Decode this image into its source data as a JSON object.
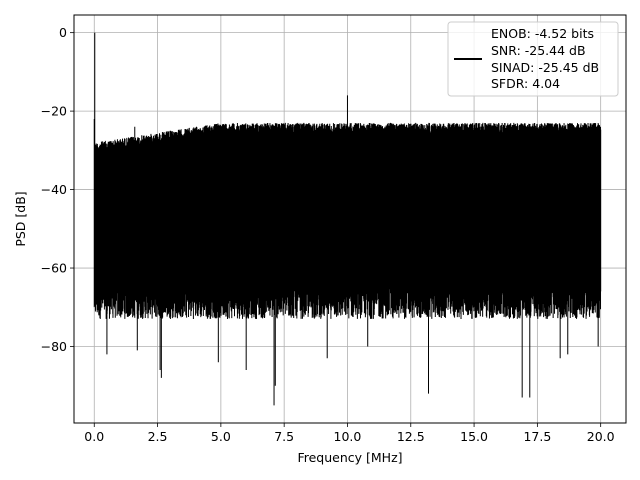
{
  "chart_data": {
    "type": "line",
    "xlabel": "Frequency [MHz]",
    "ylabel": "PSD [dB]",
    "xlim": [
      -0.8,
      21.0
    ],
    "ylim": [
      -99.5,
      4.5
    ],
    "xticks": [
      0.0,
      2.5,
      5.0,
      7.5,
      10.0,
      12.5,
      15.0,
      17.5,
      20.0
    ],
    "xtick_labels": [
      "0.0",
      "2.5",
      "5.0",
      "7.5",
      "10.0",
      "12.5",
      "15.0",
      "17.5",
      "20.0"
    ],
    "yticks": [
      0,
      -20,
      -40,
      -60,
      -80
    ],
    "ytick_labels": [
      "0",
      "−20",
      "−40",
      "−60",
      "−80"
    ],
    "grid": true,
    "legend_position": "top-right",
    "series": [
      {
        "color": "#000000",
        "description_points": {
          "spurs": [
            {
              "x": 0.02,
              "y": 0
            },
            {
              "x": 10.0,
              "y": -16
            },
            {
              "x": 1.6,
              "y": -24
            }
          ],
          "noise_upper_envelope": {
            "start": -28,
            "end": -23
          },
          "noise_lower_typical": -68,
          "deep_nulls": [
            {
              "x": 0.5,
              "y": -82
            },
            {
              "x": 1.7,
              "y": -81
            },
            {
              "x": 2.6,
              "y": -86
            },
            {
              "x": 2.65,
              "y": -88
            },
            {
              "x": 4.9,
              "y": -84
            },
            {
              "x": 6.0,
              "y": -86
            },
            {
              "x": 7.1,
              "y": -95
            },
            {
              "x": 7.15,
              "y": -90
            },
            {
              "x": 9.2,
              "y": -83
            },
            {
              "x": 10.8,
              "y": -80
            },
            {
              "x": 13.2,
              "y": -92
            },
            {
              "x": 16.9,
              "y": -93
            },
            {
              "x": 17.2,
              "y": -93
            },
            {
              "x": 18.4,
              "y": -83
            },
            {
              "x": 18.7,
              "y": -82
            },
            {
              "x": 19.9,
              "y": -80
            }
          ]
        }
      }
    ],
    "legend": {
      "lines": [
        "ENOB: -4.52 bits",
        "SNR: -25.44 dB",
        "SINAD: -25.45 dB",
        "SFDR: 4.04"
      ]
    }
  }
}
